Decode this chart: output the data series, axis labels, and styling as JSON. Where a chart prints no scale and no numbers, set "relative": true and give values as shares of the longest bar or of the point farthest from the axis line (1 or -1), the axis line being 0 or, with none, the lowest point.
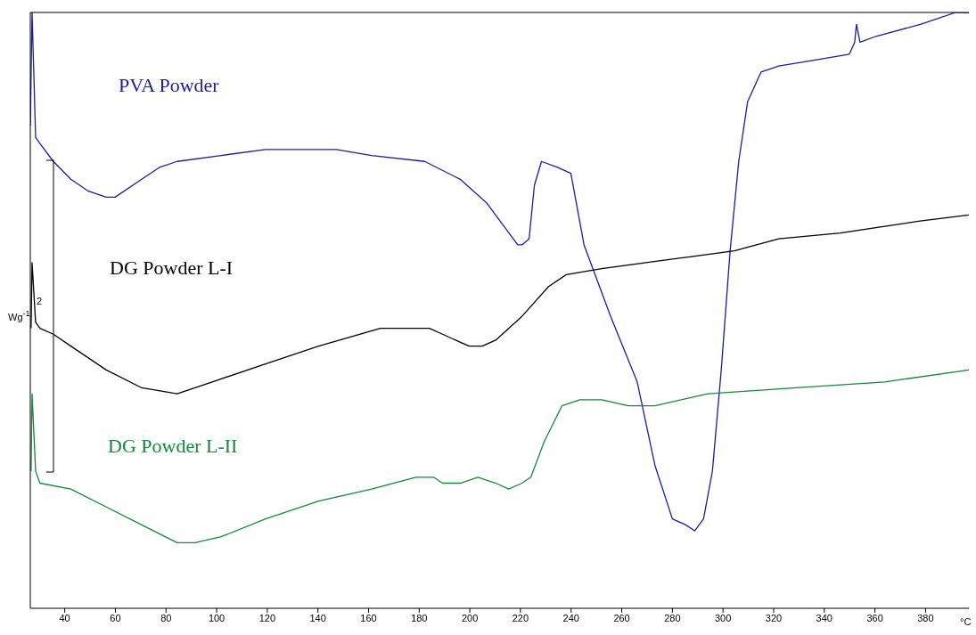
{
  "chart_data": {
    "type": "line",
    "relative": true,
    "xlabel": "°C",
    "xlim": [
      26.4,
      397.1
    ],
    "xticks": [
      40,
      60,
      80,
      100,
      120,
      140,
      160,
      180,
      200,
      220,
      240,
      260,
      280,
      300,
      320,
      340,
      360,
      380
    ],
    "legend": false,
    "grid": false,
    "marker": "none",
    "line_style": "solid",
    "annotations": [
      "2",
      "Wg$^{-1}$"
    ],
    "series": [
      {
        "name": "PVA Powder",
        "color": "#1c1ca8",
        "x": [
          26.4,
          27.1,
          28.5,
          30.2,
          35.5,
          42.4,
          49.4,
          56.4,
          58.2,
          59.9,
          70.4,
          77.4,
          84.4,
          101.8,
          119.3,
          147.3,
          161.2,
          182.2,
          196.2,
          206.7,
          213.7,
          218.9,
          220.6,
          223.4,
          225.5,
          228.3,
          234.6,
          239.9,
          245.1,
          255.6,
          266.1,
          273.1,
          280.0,
          285.3,
          288.8,
          292.3,
          295.8,
          299.3,
          302.8,
          306.2,
          309.7,
          315.0,
          322.0,
          335.9,
          349.9,
          352.0,
          352.7,
          354.1,
          360.4,
          377.9,
          391.9,
          397.1
        ],
        "values": [
          0.81,
          1.0,
          0.79,
          0.78,
          0.75,
          0.72,
          0.7,
          0.69,
          0.69,
          0.69,
          0.72,
          0.74,
          0.75,
          0.76,
          0.77,
          0.77,
          0.76,
          0.75,
          0.72,
          0.68,
          0.64,
          0.61,
          0.61,
          0.62,
          0.71,
          0.75,
          0.74,
          0.73,
          0.61,
          0.49,
          0.38,
          0.24,
          0.15,
          0.14,
          0.13,
          0.15,
          0.23,
          0.4,
          0.6,
          0.75,
          0.85,
          0.9,
          0.91,
          0.92,
          0.93,
          0.95,
          0.98,
          0.95,
          0.96,
          0.98,
          1.0,
          1.0
        ]
      },
      {
        "name": "DG Powder L-I",
        "color": "#000000",
        "x": [
          26.7,
          27.1,
          28.5,
          30.2,
          35.5,
          42.4,
          56.4,
          70.4,
          84.4,
          98.3,
          119.3,
          140.3,
          164.7,
          177.0,
          184.0,
          189.2,
          199.7,
          204.9,
          210.2,
          220.6,
          231.1,
          238.1,
          252.1,
          269.6,
          287.0,
          304.5,
          322.0,
          346.4,
          377.9,
          397.1
        ],
        "values": [
          0.47,
          0.58,
          0.48,
          0.47,
          0.46,
          0.44,
          0.4,
          0.37,
          0.36,
          0.38,
          0.41,
          0.44,
          0.47,
          0.47,
          0.47,
          0.46,
          0.44,
          0.44,
          0.45,
          0.49,
          0.54,
          0.56,
          0.57,
          0.58,
          0.59,
          0.6,
          0.62,
          0.63,
          0.65,
          0.66
        ]
      },
      {
        "name": "DG Powder L-II",
        "color": "#138a3a",
        "x": [
          26.7,
          27.1,
          28.5,
          30.2,
          42.4,
          56.4,
          70.4,
          84.4,
          91.4,
          101.8,
          119.3,
          140.3,
          161.2,
          178.7,
          185.7,
          189.2,
          196.2,
          203.2,
          210.2,
          215.4,
          220.6,
          224.1,
          229.4,
          236.4,
          243.4,
          252.1,
          262.6,
          273.1,
          294.0,
          328.9,
          363.9,
          397.1
        ],
        "values": [
          0.23,
          0.36,
          0.23,
          0.21,
          0.2,
          0.17,
          0.14,
          0.11,
          0.11,
          0.12,
          0.15,
          0.18,
          0.2,
          0.22,
          0.22,
          0.21,
          0.21,
          0.22,
          0.21,
          0.2,
          0.21,
          0.22,
          0.28,
          0.34,
          0.35,
          0.35,
          0.34,
          0.34,
          0.36,
          0.37,
          0.38,
          0.4
        ]
      }
    ]
  }
}
